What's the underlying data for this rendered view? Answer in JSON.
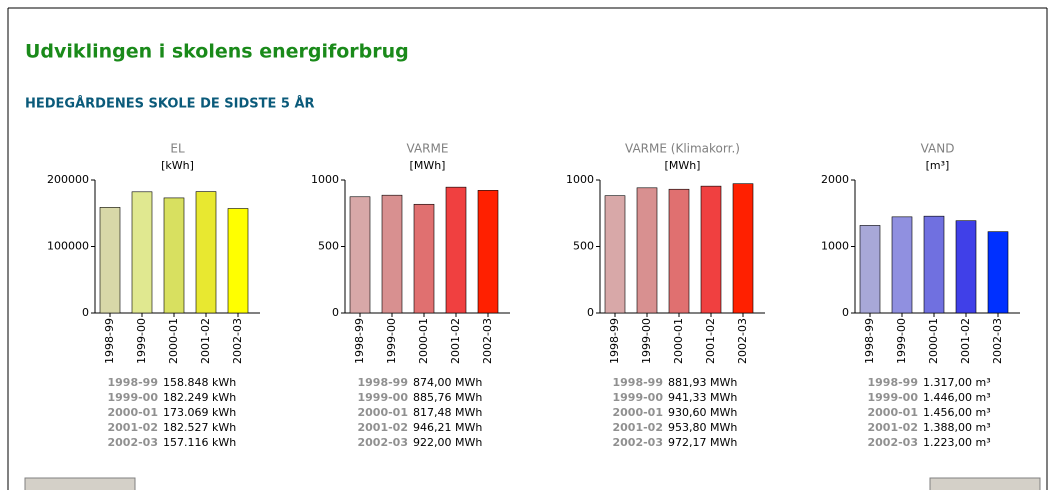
{
  "header": {
    "title": "Udviklingen i skolens energiforbrug",
    "subtitle": "HEDEGÅRDENES SKOLE DE SIDSTE 5 ÅR"
  },
  "chart_data": [
    {
      "type": "bar",
      "title": "EL",
      "subtitle": "[kWh]",
      "categories": [
        "1998-99",
        "1999-00",
        "2000-01",
        "2001-02",
        "2002-03"
      ],
      "values": [
        158848,
        182249,
        173069,
        182527,
        157116
      ],
      "value_labels": [
        "158.848 kWh",
        "182.249 kWh",
        "173.069 kWh",
        "182.527 kWh",
        "157.116 kWh"
      ],
      "colors": [
        "#d8d8a8",
        "#e0e890",
        "#d8e060",
        "#e8e830",
        "#ffff00"
      ],
      "ylim": [
        0,
        200000
      ],
      "yticks": [
        0,
        100000,
        200000
      ]
    },
    {
      "type": "bar",
      "title": "VARME",
      "subtitle": "[MWh]",
      "categories": [
        "1998-99",
        "1999-00",
        "2000-01",
        "2001-02",
        "2002-03"
      ],
      "values": [
        874,
        885.76,
        817.48,
        946.21,
        922
      ],
      "value_labels": [
        "874,00 MWh",
        "885,76 MWh",
        "817,48 MWh",
        "946,21 MWh",
        "922,00 MWh"
      ],
      "colors": [
        "#d8a8a8",
        "#d89090",
        "#e07070",
        "#f04040",
        "#ff2000"
      ],
      "ylim": [
        0,
        1000
      ],
      "yticks": [
        0,
        500,
        1000
      ]
    },
    {
      "type": "bar",
      "title": "VARME (Klimakorr.)",
      "subtitle": "[MWh]",
      "categories": [
        "1998-99",
        "1999-00",
        "2000-01",
        "2001-02",
        "2002-03"
      ],
      "values": [
        881.93,
        941.33,
        930.6,
        953.8,
        972.17
      ],
      "value_labels": [
        "881,93 MWh",
        "941,33 MWh",
        "930,60 MWh",
        "953,80 MWh",
        "972,17 MWh"
      ],
      "colors": [
        "#d8a8a8",
        "#d89090",
        "#e07070",
        "#f04040",
        "#ff2000"
      ],
      "ylim": [
        0,
        1000
      ],
      "yticks": [
        0,
        500,
        1000
      ]
    },
    {
      "type": "bar",
      "title": "VAND",
      "subtitle": "[m³]",
      "categories": [
        "1998-99",
        "1999-00",
        "2000-01",
        "2001-02",
        "2002-03"
      ],
      "values": [
        1317,
        1446,
        1456,
        1388,
        1223
      ],
      "value_labels": [
        "1.317,00 m³",
        "1.446,00 m³",
        "1.456,00 m³",
        "1.388,00 m³",
        "1.223,00 m³"
      ],
      "colors": [
        "#a8a8d8",
        "#9090e0",
        "#7070e0",
        "#4040e8",
        "#0030ff"
      ],
      "ylim": [
        0,
        2000
      ],
      "yticks": [
        0,
        1000,
        2000
      ]
    }
  ]
}
